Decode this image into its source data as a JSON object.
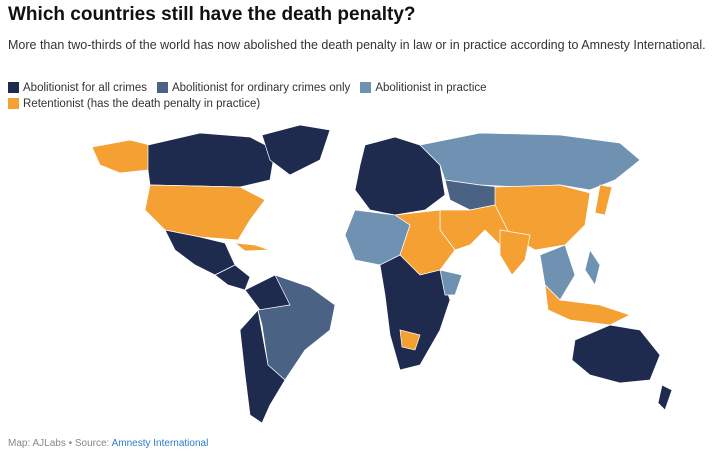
{
  "header": {
    "title": "Which countries still have the death penalty?",
    "subtitle": "More than two-thirds of the world has now abolished the death penalty in law or in practice according to Amnesty International."
  },
  "legend": [
    {
      "label": "Abolitionist for all crimes",
      "color": "#1f2a4f"
    },
    {
      "label": "Abolitionist for ordinary crimes only",
      "color": "#4a6283"
    },
    {
      "label": "Abolitionist in practice",
      "color": "#7092b2"
    },
    {
      "label": "Retentionist (has the death penalty in practice)",
      "color": "#f5a033"
    }
  ],
  "footer": {
    "credit": "Map: AJLabs • Source:",
    "source": "Amnesty International"
  }
}
